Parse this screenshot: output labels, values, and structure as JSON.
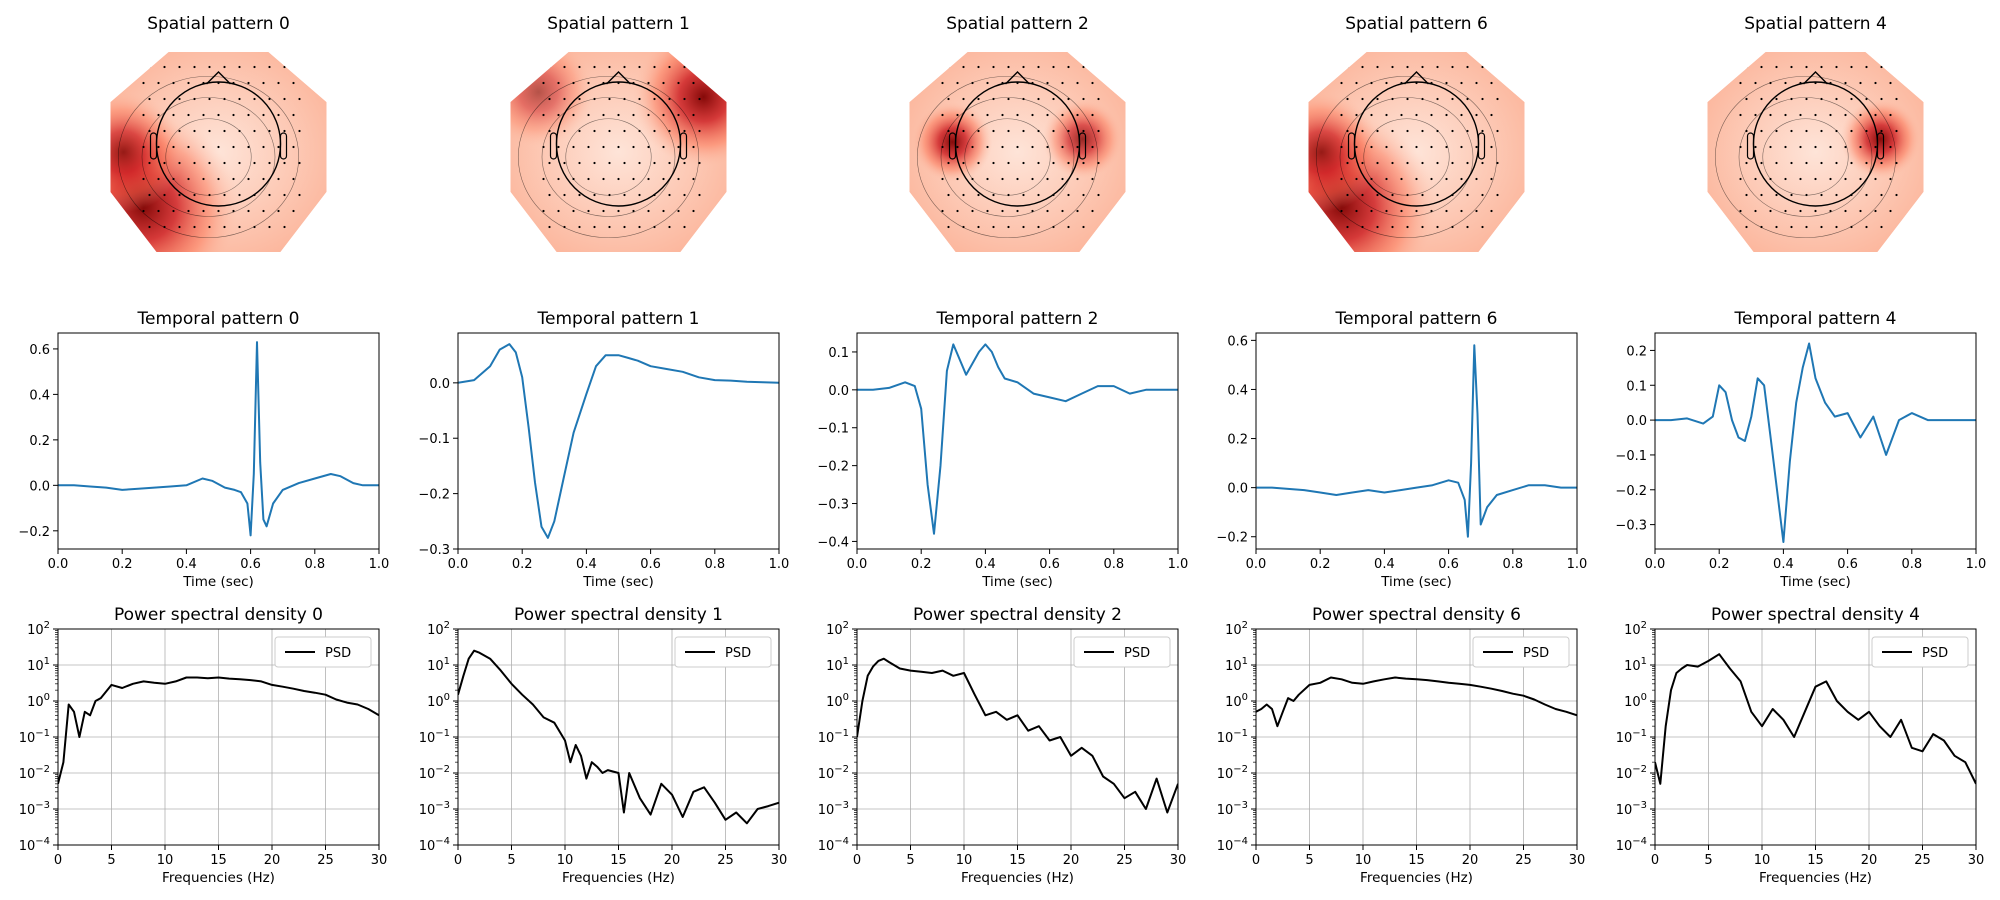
{
  "figure": {
    "spatial_titles": [
      "Spatial pattern 0",
      "Spatial pattern 1",
      "Spatial pattern 2",
      "Spatial pattern 6",
      "Spatial pattern 4"
    ],
    "temporal_titles": [
      "Temporal pattern 0",
      "Temporal pattern 1",
      "Temporal pattern 2",
      "Temporal pattern 6",
      "Temporal pattern 4"
    ],
    "psd_titles": [
      "Power spectral density 0",
      "Power spectral density 1",
      "Power spectral density 2",
      "Power spectral density 6",
      "Power spectral density 4"
    ],
    "temporal_xlabel": "Time (sec)",
    "psd_xlabel": "Frequencies (Hz)",
    "legend_label": "PSD",
    "colors": {
      "temporal_line": "#1f77b4",
      "psd_line": "#000000",
      "grid": "#b0b0b0"
    },
    "topomap_hotspots": [
      [
        {
          "side": "lower-left",
          "level": 1.0
        },
        {
          "side": "left",
          "level": 0.85
        }
      ],
      [
        {
          "side": "upper-right",
          "level": 1.0
        },
        {
          "side": "upper-left",
          "level": 0.6
        }
      ],
      [
        {
          "side": "left-temporal",
          "level": 1.0
        },
        {
          "side": "right-temporal",
          "level": 0.85
        }
      ],
      [
        {
          "side": "lower-left",
          "level": 1.0
        },
        {
          "side": "left",
          "level": 0.85
        }
      ],
      [
        {
          "side": "right-temporal",
          "level": 1.0
        }
      ]
    ]
  },
  "chart_data": [
    {
      "type": "line",
      "panel": "Temporal pattern 0",
      "xlabel": "Time (sec)",
      "xlim": [
        0,
        1
      ],
      "ylim": [
        -0.28,
        0.67
      ],
      "xticks": [
        "0.0",
        "0.2",
        "0.4",
        "0.6",
        "0.8",
        "1.0"
      ],
      "yticks": [
        {
          "v": -0.2,
          "l": "−0.2"
        },
        {
          "v": 0.0,
          "l": "0.0"
        },
        {
          "v": 0.2,
          "l": "0.2"
        },
        {
          "v": 0.4,
          "l": "0.4"
        },
        {
          "v": 0.6,
          "l": "0.6"
        }
      ],
      "x": [
        0,
        0.05,
        0.1,
        0.15,
        0.2,
        0.25,
        0.3,
        0.35,
        0.4,
        0.45,
        0.48,
        0.52,
        0.55,
        0.57,
        0.59,
        0.6,
        0.61,
        0.62,
        0.63,
        0.64,
        0.65,
        0.67,
        0.7,
        0.75,
        0.8,
        0.85,
        0.88,
        0.92,
        0.95,
        1.0
      ],
      "y": [
        0,
        0,
        -0.005,
        -0.01,
        -0.02,
        -0.015,
        -0.01,
        -0.005,
        0,
        0.03,
        0.02,
        -0.01,
        -0.02,
        -0.03,
        -0.08,
        -0.22,
        0.05,
        0.63,
        0.1,
        -0.15,
        -0.18,
        -0.08,
        -0.02,
        0.01,
        0.03,
        0.05,
        0.04,
        0.01,
        0,
        0
      ]
    },
    {
      "type": "line",
      "panel": "Temporal pattern 1",
      "xlabel": "Time (sec)",
      "xlim": [
        0,
        1
      ],
      "ylim": [
        -0.3,
        0.09
      ],
      "xticks": [
        "0.0",
        "0.2",
        "0.4",
        "0.6",
        "0.8",
        "1.0"
      ],
      "yticks": [
        {
          "v": -0.3,
          "l": "−0.3"
        },
        {
          "v": -0.2,
          "l": "−0.2"
        },
        {
          "v": -0.1,
          "l": "−0.1"
        },
        {
          "v": 0.0,
          "l": "0.0"
        }
      ],
      "x": [
        0,
        0.05,
        0.1,
        0.13,
        0.16,
        0.18,
        0.2,
        0.22,
        0.24,
        0.26,
        0.28,
        0.3,
        0.33,
        0.36,
        0.4,
        0.43,
        0.46,
        0.5,
        0.53,
        0.56,
        0.6,
        0.65,
        0.7,
        0.75,
        0.8,
        0.85,
        0.9,
        0.95,
        1.0
      ],
      "y": [
        0,
        0.005,
        0.03,
        0.06,
        0.07,
        0.055,
        0.01,
        -0.08,
        -0.18,
        -0.26,
        -0.28,
        -0.25,
        -0.17,
        -0.09,
        -0.02,
        0.03,
        0.05,
        0.05,
        0.045,
        0.04,
        0.03,
        0.025,
        0.02,
        0.01,
        0.005,
        0.004,
        0.002,
        0.001,
        0
      ]
    },
    {
      "type": "line",
      "panel": "Temporal pattern 2",
      "xlabel": "Time (sec)",
      "xlim": [
        0,
        1
      ],
      "ylim": [
        -0.42,
        0.15
      ],
      "xticks": [
        "0.0",
        "0.2",
        "0.4",
        "0.6",
        "0.8",
        "1.0"
      ],
      "yticks": [
        {
          "v": -0.4,
          "l": "−0.4"
        },
        {
          "v": -0.3,
          "l": "−0.3"
        },
        {
          "v": -0.2,
          "l": "−0.2"
        },
        {
          "v": -0.1,
          "l": "−0.1"
        },
        {
          "v": 0.0,
          "l": "0.0"
        },
        {
          "v": 0.1,
          "l": "0.1"
        }
      ],
      "x": [
        0,
        0.05,
        0.1,
        0.15,
        0.18,
        0.2,
        0.22,
        0.24,
        0.26,
        0.28,
        0.3,
        0.32,
        0.34,
        0.36,
        0.38,
        0.4,
        0.42,
        0.44,
        0.46,
        0.5,
        0.55,
        0.6,
        0.65,
        0.7,
        0.75,
        0.8,
        0.85,
        0.9,
        0.95,
        1.0
      ],
      "y": [
        0,
        0,
        0.005,
        0.02,
        0.01,
        -0.05,
        -0.25,
        -0.38,
        -0.2,
        0.05,
        0.12,
        0.08,
        0.04,
        0.07,
        0.1,
        0.12,
        0.1,
        0.06,
        0.03,
        0.02,
        -0.01,
        -0.02,
        -0.03,
        -0.01,
        0.01,
        0.01,
        -0.01,
        0,
        0,
        0
      ]
    },
    {
      "type": "line",
      "panel": "Temporal pattern 6",
      "xlabel": "Time (sec)",
      "xlim": [
        0,
        1
      ],
      "ylim": [
        -0.25,
        0.63
      ],
      "xticks": [
        "0.0",
        "0.2",
        "0.4",
        "0.6",
        "0.8",
        "1.0"
      ],
      "yticks": [
        {
          "v": -0.2,
          "l": "−0.2"
        },
        {
          "v": 0.0,
          "l": "0.0"
        },
        {
          "v": 0.2,
          "l": "0.2"
        },
        {
          "v": 0.4,
          "l": "0.4"
        },
        {
          "v": 0.6,
          "l": "0.6"
        }
      ],
      "x": [
        0,
        0.05,
        0.1,
        0.15,
        0.2,
        0.25,
        0.3,
        0.35,
        0.4,
        0.45,
        0.5,
        0.55,
        0.6,
        0.63,
        0.65,
        0.66,
        0.67,
        0.68,
        0.69,
        0.7,
        0.72,
        0.75,
        0.8,
        0.85,
        0.9,
        0.95,
        1.0
      ],
      "y": [
        0,
        0,
        -0.005,
        -0.01,
        -0.02,
        -0.03,
        -0.02,
        -0.01,
        -0.02,
        -0.01,
        0,
        0.01,
        0.03,
        0.02,
        -0.05,
        -0.2,
        0.1,
        0.58,
        0.3,
        -0.15,
        -0.08,
        -0.03,
        -0.01,
        0.01,
        0.01,
        0,
        0
      ]
    },
    {
      "type": "line",
      "panel": "Temporal pattern 4",
      "xlabel": "Time (sec)",
      "xlim": [
        0,
        1
      ],
      "ylim": [
        -0.37,
        0.25
      ],
      "xticks": [
        "0.0",
        "0.2",
        "0.4",
        "0.6",
        "0.8",
        "1.0"
      ],
      "yticks": [
        {
          "v": -0.3,
          "l": "−0.3"
        },
        {
          "v": -0.2,
          "l": "−0.2"
        },
        {
          "v": -0.1,
          "l": "−0.1"
        },
        {
          "v": 0.0,
          "l": "0.0"
        },
        {
          "v": 0.1,
          "l": "0.1"
        },
        {
          "v": 0.2,
          "l": "0.2"
        }
      ],
      "x": [
        0,
        0.05,
        0.1,
        0.15,
        0.18,
        0.2,
        0.22,
        0.24,
        0.26,
        0.28,
        0.3,
        0.32,
        0.34,
        0.36,
        0.38,
        0.4,
        0.42,
        0.44,
        0.46,
        0.48,
        0.5,
        0.53,
        0.56,
        0.6,
        0.64,
        0.68,
        0.72,
        0.76,
        0.8,
        0.85,
        0.9,
        1.0
      ],
      "y": [
        0,
        0,
        0.005,
        -0.01,
        0.01,
        0.1,
        0.08,
        0.0,
        -0.05,
        -0.06,
        0.01,
        0.12,
        0.1,
        -0.05,
        -0.2,
        -0.35,
        -0.12,
        0.05,
        0.15,
        0.22,
        0.12,
        0.05,
        0.01,
        0.02,
        -0.05,
        0.01,
        -0.1,
        0.0,
        0.02,
        0.0,
        0.0,
        0
      ]
    },
    {
      "type": "line",
      "panel": "Power spectral density 0",
      "xlabel": "Frequencies (Hz)",
      "yscale": "log",
      "xlim": [
        0,
        30
      ],
      "ylim": [
        0.0001,
        100
      ],
      "xticks": [
        "0",
        "5",
        "10",
        "15",
        "20",
        "25",
        "30"
      ],
      "series": [
        {
          "name": "PSD",
          "x": [
            0,
            0.5,
            1,
            1.5,
            2,
            2.5,
            3,
            3.5,
            4,
            5,
            6,
            7,
            8,
            9,
            10,
            11,
            12,
            13,
            14,
            15,
            16,
            17,
            18,
            19,
            20,
            21,
            22,
            23,
            24,
            25,
            26,
            27,
            28,
            29,
            30
          ],
          "y": [
            0.005,
            0.02,
            0.8,
            0.5,
            0.1,
            0.5,
            0.4,
            1.0,
            1.2,
            2.8,
            2.3,
            3.0,
            3.5,
            3.2,
            3.0,
            3.5,
            4.5,
            4.5,
            4.3,
            4.5,
            4.2,
            4.0,
            3.8,
            3.5,
            2.8,
            2.5,
            2.2,
            1.9,
            1.7,
            1.5,
            1.1,
            0.9,
            0.8,
            0.6,
            0.4
          ]
        }
      ]
    },
    {
      "type": "line",
      "panel": "Power spectral density 1",
      "xlabel": "Frequencies (Hz)",
      "yscale": "log",
      "xlim": [
        0,
        30
      ],
      "ylim": [
        0.0001,
        100
      ],
      "xticks": [
        "0",
        "5",
        "10",
        "15",
        "20",
        "25",
        "30"
      ],
      "series": [
        {
          "name": "PSD",
          "x": [
            0,
            0.5,
            1,
            1.5,
            2,
            3,
            4,
            5,
            6,
            7,
            8,
            9,
            10,
            10.5,
            11,
            11.5,
            12,
            12.5,
            13,
            13.5,
            14,
            15,
            15.5,
            16,
            17,
            18,
            19,
            20,
            21,
            22,
            23,
            24,
            25,
            26,
            27,
            28,
            29,
            30
          ],
          "y": [
            1.5,
            5,
            15,
            25,
            22,
            15,
            7,
            3,
            1.5,
            0.8,
            0.35,
            0.25,
            0.08,
            0.02,
            0.06,
            0.03,
            0.007,
            0.02,
            0.015,
            0.01,
            0.012,
            0.01,
            0.0008,
            0.01,
            0.002,
            0.0007,
            0.005,
            0.0025,
            0.0006,
            0.003,
            0.004,
            0.0015,
            0.0005,
            0.0008,
            0.0004,
            0.001,
            0.0012,
            0.0015
          ]
        }
      ]
    },
    {
      "type": "line",
      "panel": "Power spectral density 2",
      "xlabel": "Frequencies (Hz)",
      "yscale": "log",
      "xlim": [
        0,
        30
      ],
      "ylim": [
        0.0001,
        100
      ],
      "xticks": [
        "0",
        "5",
        "10",
        "15",
        "20",
        "25",
        "30"
      ],
      "series": [
        {
          "name": "PSD",
          "x": [
            0,
            0.5,
            1,
            1.5,
            2,
            2.5,
            3,
            4,
            5,
            6,
            7,
            8,
            9,
            10,
            11,
            12,
            13,
            14,
            15,
            16,
            17,
            18,
            19,
            20,
            21,
            22,
            23,
            24,
            25,
            26,
            27,
            28,
            29,
            30
          ],
          "y": [
            0.1,
            1.0,
            5,
            9,
            13,
            15,
            12,
            8,
            7,
            6.5,
            6,
            7,
            5,
            6,
            1.5,
            0.4,
            0.5,
            0.3,
            0.4,
            0.15,
            0.2,
            0.08,
            0.1,
            0.03,
            0.05,
            0.03,
            0.008,
            0.005,
            0.002,
            0.003,
            0.001,
            0.007,
            0.0008,
            0.005
          ]
        }
      ]
    },
    {
      "type": "line",
      "panel": "Power spectral density 6",
      "xlabel": "Frequencies (Hz)",
      "yscale": "log",
      "xlim": [
        0,
        30
      ],
      "ylim": [
        0.0001,
        100
      ],
      "xticks": [
        "0",
        "5",
        "10",
        "15",
        "20",
        "25",
        "30"
      ],
      "series": [
        {
          "name": "PSD",
          "x": [
            0,
            0.5,
            1,
            1.5,
            2,
            2.5,
            3,
            3.5,
            4,
            5,
            6,
            7,
            8,
            9,
            10,
            11,
            12,
            13,
            14,
            15,
            16,
            17,
            18,
            19,
            20,
            21,
            22,
            23,
            24,
            25,
            26,
            27,
            28,
            29,
            30
          ],
          "y": [
            0.5,
            0.6,
            0.8,
            0.6,
            0.2,
            0.5,
            1.2,
            1.0,
            1.5,
            2.8,
            3.2,
            4.5,
            4.0,
            3.2,
            3.0,
            3.5,
            4.0,
            4.5,
            4.2,
            4.0,
            3.8,
            3.5,
            3.2,
            3.0,
            2.8,
            2.5,
            2.2,
            1.9,
            1.6,
            1.4,
            1.1,
            0.8,
            0.6,
            0.5,
            0.4
          ]
        }
      ]
    },
    {
      "type": "line",
      "panel": "Power spectral density 4",
      "xlabel": "Frequencies (Hz)",
      "yscale": "log",
      "xlim": [
        0,
        30
      ],
      "ylim": [
        0.0001,
        100
      ],
      "xticks": [
        "0",
        "5",
        "10",
        "15",
        "20",
        "25",
        "30"
      ],
      "series": [
        {
          "name": "PSD",
          "x": [
            0,
            0.5,
            1,
            1.5,
            2,
            2.5,
            3,
            4,
            5,
            6,
            7,
            8,
            9,
            10,
            11,
            12,
            13,
            14,
            15,
            16,
            17,
            18,
            19,
            20,
            21,
            22,
            23,
            24,
            25,
            26,
            27,
            28,
            29,
            30
          ],
          "y": [
            0.02,
            0.005,
            0.2,
            2,
            6,
            8,
            10,
            9,
            13,
            20,
            8,
            3.5,
            0.5,
            0.2,
            0.6,
            0.3,
            0.1,
            0.5,
            2.5,
            3.5,
            1.0,
            0.5,
            0.3,
            0.5,
            0.2,
            0.1,
            0.3,
            0.05,
            0.04,
            0.12,
            0.08,
            0.03,
            0.02,
            0.005
          ]
        }
      ]
    }
  ]
}
